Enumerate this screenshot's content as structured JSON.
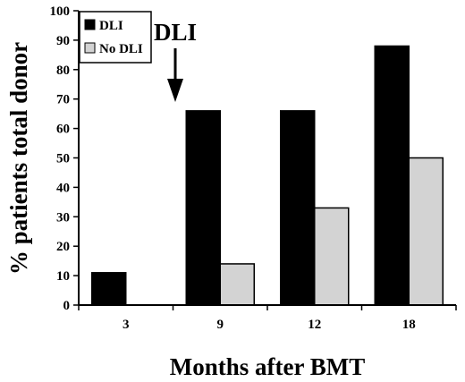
{
  "chart_data": {
    "type": "bar",
    "categories": [
      "3",
      "9",
      "12",
      "18"
    ],
    "series": [
      {
        "name": "DLI",
        "values": [
          11,
          66,
          66,
          88
        ],
        "color": "#000000"
      },
      {
        "name": "No DLI",
        "values": [
          0,
          14,
          33,
          50
        ],
        "color": "#d3d3d3"
      }
    ],
    "xlabel": "Months after BMT",
    "ylabel": "% patients total donor",
    "ylim": [
      0,
      100
    ],
    "yticks": [
      0,
      10,
      20,
      30,
      40,
      50,
      60,
      70,
      80,
      90,
      100
    ],
    "grid": false,
    "legend": {
      "placement": "top-left"
    },
    "annotation": {
      "text": "DLI",
      "type": "down-arrow",
      "between_categories": [
        "3",
        "9"
      ]
    }
  }
}
